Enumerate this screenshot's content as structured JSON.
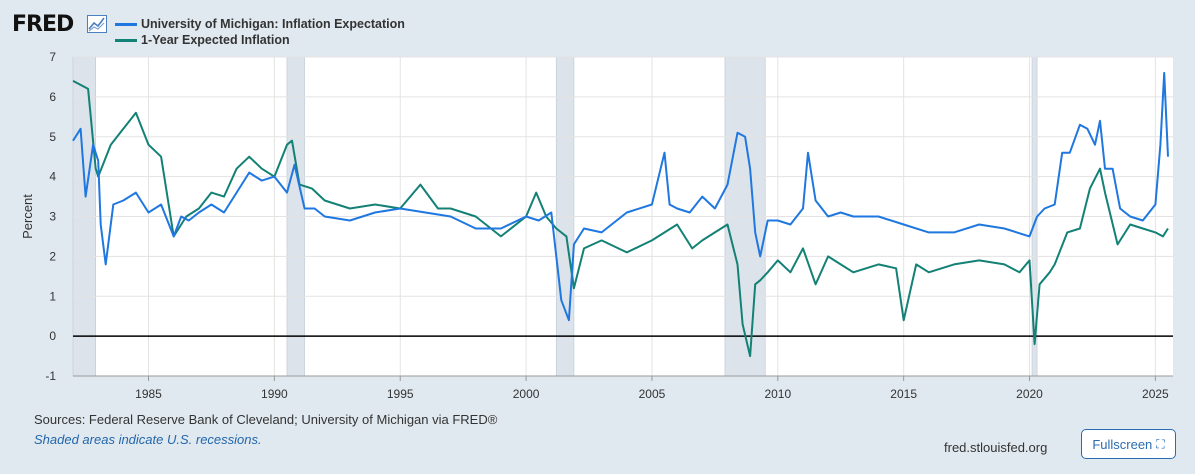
{
  "header": {
    "logo_text": "FRED",
    "logo_icon": "line-chart-icon"
  },
  "legend": [
    {
      "label": "University of Michigan: Inflation Expectation",
      "color": "#1f77e0"
    },
    {
      "label": "1-Year Expected Inflation",
      "color": "#138175"
    }
  ],
  "footer": {
    "sources": "Sources: Federal Reserve Bank of Cleveland; University of Michigan via FRED®",
    "note": "Shaded areas indicate U.S. recessions.",
    "url": "fred.stlouisfed.org",
    "fullscreen_label": "Fullscreen",
    "fullscreen_icon": "expand-icon"
  },
  "chart_data": {
    "type": "line",
    "title": "",
    "xlabel": "",
    "ylabel": "Percent",
    "xlim": [
      1982.0,
      2025.7
    ],
    "ylim": [
      -1,
      7
    ],
    "xticks": [
      1985,
      1990,
      1995,
      2000,
      2005,
      2010,
      2015,
      2020,
      2025
    ],
    "yticks": [
      -1,
      0,
      1,
      2,
      3,
      4,
      5,
      6,
      7
    ],
    "grid": true,
    "recessions": [
      [
        1982.0,
        1982.9
      ],
      [
        1990.5,
        1991.2
      ],
      [
        2001.2,
        2001.9
      ],
      [
        2007.9,
        2009.5
      ],
      [
        2020.1,
        2020.3
      ]
    ],
    "series": [
      {
        "name": "University of Michigan: Inflation Expectation",
        "color": "#1f77e0",
        "x": [
          1982.0,
          1982.3,
          1982.5,
          1982.8,
          1983.0,
          1983.1,
          1983.3,
          1983.6,
          1984.0,
          1984.5,
          1985.0,
          1985.5,
          1986.0,
          1986.3,
          1986.6,
          1987.0,
          1987.5,
          1988.0,
          1988.5,
          1989.0,
          1989.5,
          1990.0,
          1990.5,
          1990.8,
          1991.2,
          1991.6,
          1992.0,
          1993.0,
          1994.0,
          1995.0,
          1996.0,
          1997.0,
          1998.0,
          1999.0,
          2000.0,
          2000.5,
          2001.0,
          2001.4,
          2001.7,
          2001.9,
          2002.3,
          2003.0,
          2004.0,
          2005.0,
          2005.5,
          2005.7,
          2006.0,
          2006.5,
          2007.0,
          2007.5,
          2008.0,
          2008.4,
          2008.7,
          2008.9,
          2009.1,
          2009.3,
          2009.6,
          2010.0,
          2010.5,
          2011.0,
          2011.2,
          2011.5,
          2012.0,
          2012.5,
          2013.0,
          2014.0,
          2015.0,
          2016.0,
          2017.0,
          2018.0,
          2019.0,
          2020.0,
          2020.3,
          2020.6,
          2021.0,
          2021.3,
          2021.6,
          2022.0,
          2022.3,
          2022.6,
          2022.8,
          2023.0,
          2023.3,
          2023.6,
          2024.0,
          2024.5,
          2025.0,
          2025.2,
          2025.35,
          2025.5
        ],
        "y": [
          4.9,
          5.2,
          3.5,
          4.8,
          4.4,
          2.8,
          1.8,
          3.3,
          3.4,
          3.6,
          3.1,
          3.3,
          2.5,
          3.0,
          2.9,
          3.1,
          3.3,
          3.1,
          3.6,
          4.1,
          3.9,
          4.0,
          3.6,
          4.3,
          3.2,
          3.2,
          3.0,
          2.9,
          3.1,
          3.2,
          3.1,
          3.0,
          2.7,
          2.7,
          3.0,
          2.9,
          3.1,
          0.9,
          0.4,
          2.3,
          2.7,
          2.6,
          3.1,
          3.3,
          4.6,
          3.3,
          3.2,
          3.1,
          3.5,
          3.2,
          3.8,
          5.1,
          5.0,
          4.2,
          2.6,
          2.0,
          2.9,
          2.9,
          2.8,
          3.2,
          4.6,
          3.4,
          3.0,
          3.1,
          3.0,
          3.0,
          2.8,
          2.6,
          2.6,
          2.8,
          2.7,
          2.5,
          3.0,
          3.2,
          3.3,
          4.6,
          4.6,
          5.3,
          5.2,
          4.8,
          5.4,
          4.2,
          4.2,
          3.2,
          3.0,
          2.9,
          3.3,
          4.8,
          6.6,
          4.5
        ]
      },
      {
        "name": "1-Year Expected Inflation",
        "color": "#138175",
        "x": [
          1982.0,
          1982.3,
          1982.6,
          1982.9,
          1983.0,
          1983.5,
          1984.0,
          1984.5,
          1985.0,
          1985.5,
          1986.0,
          1986.5,
          1987.0,
          1987.5,
          1988.0,
          1988.5,
          1989.0,
          1989.5,
          1990.0,
          1990.5,
          1990.7,
          1991.0,
          1991.5,
          1992.0,
          1993.0,
          1994.0,
          1995.0,
          1995.8,
          1996.5,
          1997.0,
          1998.0,
          1999.0,
          2000.0,
          2000.4,
          2000.8,
          2001.2,
          2001.6,
          2001.9,
          2002.3,
          2003.0,
          2004.0,
          2005.0,
          2006.0,
          2006.6,
          2007.0,
          2007.5,
          2008.0,
          2008.4,
          2008.6,
          2008.9,
          2009.1,
          2009.3,
          2009.6,
          2010.0,
          2010.5,
          2011.0,
          2011.5,
          2012.0,
          2012.5,
          2013.0,
          2014.0,
          2014.7,
          2015.0,
          2015.5,
          2016.0,
          2017.0,
          2018.0,
          2019.0,
          2019.6,
          2020.0,
          2020.2,
          2020.4,
          2020.8,
          2021.0,
          2021.5,
          2022.0,
          2022.4,
          2022.8,
          2023.0,
          2023.5,
          2024.0,
          2024.5,
          2025.0,
          2025.3,
          2025.5
        ],
        "y": [
          6.4,
          6.3,
          6.2,
          4.2,
          4.0,
          4.8,
          5.2,
          5.6,
          4.8,
          4.5,
          2.5,
          3.0,
          3.2,
          3.6,
          3.5,
          4.2,
          4.5,
          4.2,
          4.0,
          4.8,
          4.9,
          3.8,
          3.7,
          3.4,
          3.2,
          3.3,
          3.2,
          3.8,
          3.2,
          3.2,
          3.0,
          2.5,
          3.0,
          3.6,
          3.0,
          2.7,
          2.5,
          1.2,
          2.2,
          2.4,
          2.1,
          2.4,
          2.8,
          2.2,
          2.4,
          2.6,
          2.8,
          1.8,
          0.3,
          -0.5,
          1.3,
          1.4,
          1.6,
          1.9,
          1.6,
          2.2,
          1.3,
          2.0,
          1.8,
          1.6,
          1.8,
          1.7,
          0.4,
          1.8,
          1.6,
          1.8,
          1.9,
          1.8,
          1.6,
          1.9,
          -0.2,
          1.3,
          1.6,
          1.8,
          2.6,
          2.7,
          3.7,
          4.2,
          3.6,
          2.3,
          2.8,
          2.7,
          2.6,
          2.5,
          2.7
        ]
      }
    ]
  }
}
